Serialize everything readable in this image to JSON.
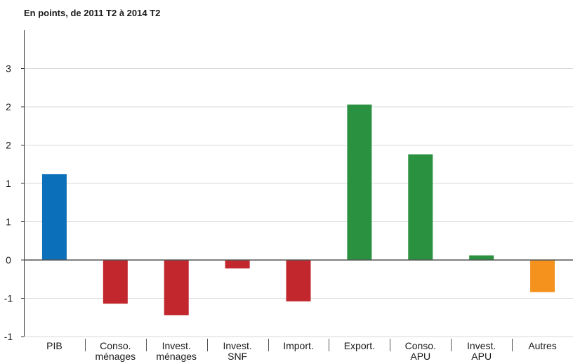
{
  "chart_data": {
    "type": "bar",
    "title": "En points, de 2011 T2 à 2014 T2",
    "xlabel": "",
    "ylabel": "",
    "categories": [
      [
        "PIB"
      ],
      [
        "Conso.",
        "ménages"
      ],
      [
        "Invest.",
        "ménages"
      ],
      [
        "Invest.",
        "SNF"
      ],
      [
        "Import."
      ],
      [
        "Export."
      ],
      [
        "Conso.",
        "APU"
      ],
      [
        "Invest.",
        "APU"
      ],
      [
        "Autres"
      ]
    ],
    "values": [
      1.12,
      -0.57,
      -0.72,
      -0.11,
      -0.54,
      2.03,
      1.38,
      0.06,
      -0.42
    ],
    "colors": [
      "#0b6fba",
      "#c1272d",
      "#c1272d",
      "#c1272d",
      "#c1272d",
      "#2a9140",
      "#2a9140",
      "#2a9140",
      "#f5921e"
    ],
    "ylim": [
      -1,
      3
    ],
    "ytick_values": [
      -1,
      -0.5,
      0,
      0.5,
      1,
      1.5,
      2,
      2.5
    ],
    "ytick_labels": [
      "-1",
      "-1",
      "0",
      "1",
      "1",
      "2",
      "2",
      "3"
    ],
    "grid": true,
    "legend": "none"
  }
}
